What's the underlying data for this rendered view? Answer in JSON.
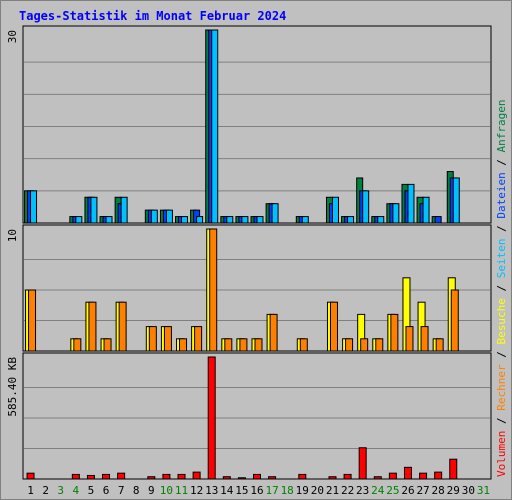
{
  "chart_data": {
    "title": "Tages-Statistik im Monat Februar 2024",
    "type": "bar",
    "categories": [
      "1",
      "2",
      "3",
      "4",
      "5",
      "6",
      "7",
      "8",
      "9",
      "10",
      "11",
      "12",
      "13",
      "14",
      "15",
      "16",
      "17",
      "18",
      "19",
      "20",
      "21",
      "22",
      "23",
      "24",
      "25",
      "26",
      "27",
      "28",
      "29",
      "30",
      "31"
    ],
    "weekend_days": [
      "3",
      "4",
      "10",
      "11",
      "17",
      "18",
      "24",
      "25",
      "31"
    ],
    "colors": {
      "anfragen": "#008040",
      "dateien": "#0040ff",
      "seiten": "#00c0ff",
      "besuche": "#ffff00",
      "rechner": "#ff8000",
      "volumen": "#ff0000",
      "weekday_label": "#000000",
      "weekend_label": "#008000"
    },
    "panels": [
      {
        "id": "requests",
        "ymax_label": "30",
        "ylim": [
          0,
          30
        ],
        "series": [
          {
            "name": "Anfragen",
            "color": "#008040",
            "values": [
              5,
              0,
              0,
              1,
              4,
              1,
              4,
              0,
              2,
              2,
              1,
              2,
              30,
              1,
              1,
              1,
              3,
              0,
              1,
              0,
              4,
              1,
              7,
              1,
              3,
              6,
              4,
              1,
              8,
              0,
              0
            ]
          },
          {
            "name": "Dateien",
            "color": "#0040ff",
            "values": [
              5,
              0,
              0,
              1,
              4,
              1,
              3,
              0,
              2,
              2,
              1,
              2,
              30,
              1,
              1,
              1,
              3,
              0,
              1,
              0,
              3,
              1,
              5,
              1,
              3,
              5,
              3,
              1,
              7,
              0,
              0
            ]
          },
          {
            "name": "Seiten",
            "color": "#00c0ff",
            "values": [
              5,
              0,
              0,
              1,
              4,
              1,
              4,
              0,
              2,
              2,
              1,
              1,
              30,
              1,
              1,
              1,
              3,
              0,
              1,
              0,
              4,
              1,
              5,
              1,
              3,
              6,
              4,
              0,
              7,
              0,
              0
            ]
          }
        ]
      },
      {
        "id": "visits",
        "ymax_label": "10",
        "ylim": [
          0,
          10
        ],
        "series": [
          {
            "name": "Besuche",
            "color": "#ffff00",
            "values": [
              5,
              0,
              0,
              1,
              4,
              1,
              4,
              0,
              2,
              2,
              1,
              2,
              10,
              1,
              1,
              1,
              3,
              0,
              1,
              0,
              4,
              1,
              3,
              1,
              3,
              6,
              4,
              1,
              6,
              0,
              0
            ]
          },
          {
            "name": "Rechner",
            "color": "#ff8000",
            "values": [
              5,
              0,
              0,
              1,
              4,
              1,
              4,
              0,
              2,
              2,
              1,
              2,
              10,
              1,
              1,
              1,
              3,
              0,
              1,
              0,
              4,
              1,
              1,
              1,
              3,
              2,
              2,
              1,
              5,
              0,
              0
            ]
          }
        ]
      },
      {
        "id": "volume",
        "ymax_label": "585.40 KB",
        "ylim": [
          0,
          585.4
        ],
        "series": [
          {
            "name": "Volumen",
            "color": "#ff0000",
            "values": [
              28,
              0,
              0,
              22,
              17,
              22,
              28,
              0,
              11,
              22,
              22,
              33,
              585.4,
              11,
              6,
              22,
              11,
              0,
              22,
              0,
              11,
              22,
              150,
              11,
              28,
              56,
              28,
              33,
              95,
              0,
              0
            ]
          }
        ]
      }
    ],
    "side_legend": [
      {
        "text": "Volumen",
        "color": "#ff0000"
      },
      {
        "text": " / ",
        "color": "#000000"
      },
      {
        "text": "Rechner",
        "color": "#ff8000"
      },
      {
        "text": " / ",
        "color": "#000000"
      },
      {
        "text": "Besuche",
        "color": "#ffff00"
      },
      {
        "text": " / ",
        "color": "#000000"
      },
      {
        "text": "Seiten",
        "color": "#00c0ff"
      },
      {
        "text": " / ",
        "color": "#000000"
      },
      {
        "text": "Dateien",
        "color": "#0040ff"
      },
      {
        "text": " / ",
        "color": "#000000"
      },
      {
        "text": "Anfragen",
        "color": "#008040"
      }
    ]
  }
}
